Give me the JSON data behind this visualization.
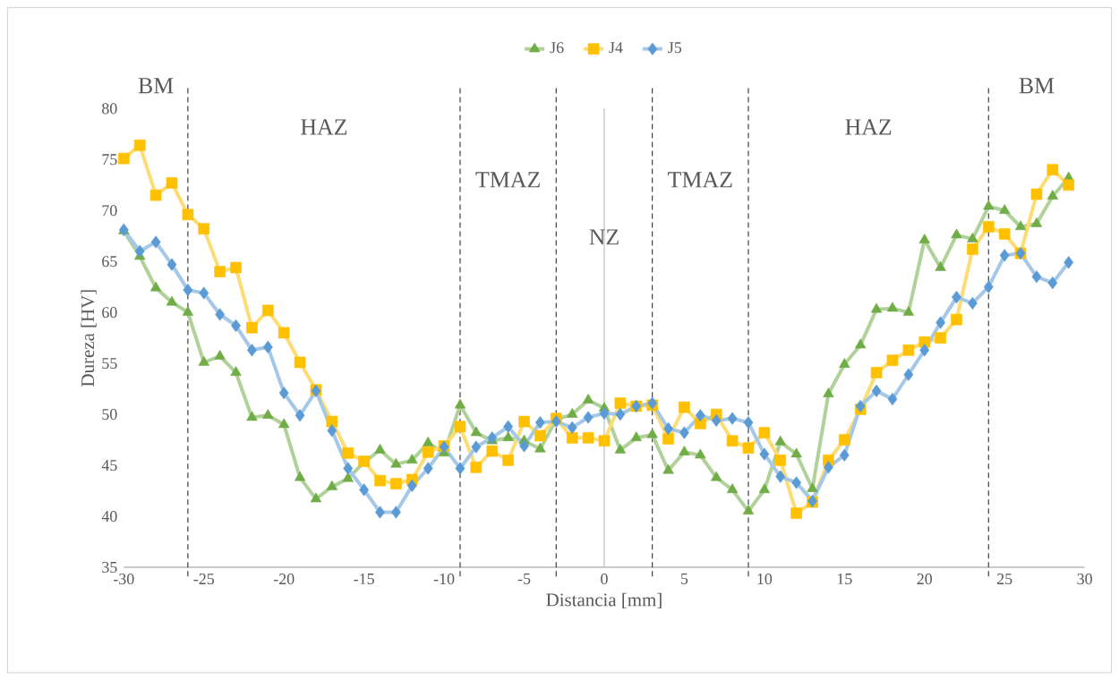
{
  "chart_data": {
    "type": "line",
    "xlabel": "Distancia [mm]",
    "ylabel": "Dureza [HV]",
    "x": [
      -30,
      -29,
      -28,
      -27,
      -26,
      -25,
      -24,
      -23,
      -22,
      -21,
      -20,
      -19,
      -18,
      -17,
      -16,
      -15,
      -14,
      -13,
      -12,
      -11,
      -10,
      -9,
      -8,
      -7,
      -6,
      -5,
      -4,
      -3,
      -2,
      -1,
      0,
      1,
      2,
      3,
      4,
      5,
      6,
      7,
      8,
      9,
      10,
      11,
      12,
      13,
      14,
      15,
      16,
      17,
      18,
      19,
      20,
      21,
      22,
      23,
      24,
      25,
      26,
      27,
      28,
      29
    ],
    "series": [
      {
        "name": "J6",
        "color": "#70ad47",
        "marker": "triangle",
        "values": [
          68.0,
          65.5,
          62.4,
          61.0,
          60.0,
          55.1,
          55.7,
          54.1,
          49.7,
          49.9,
          49.0,
          43.8,
          41.7,
          42.9,
          43.7,
          45.3,
          46.5,
          45.1,
          45.5,
          47.2,
          46.2,
          50.9,
          48.2,
          47.4,
          47.7,
          47.4,
          46.6,
          49.5,
          50.0,
          51.4,
          50.6,
          46.5,
          47.7,
          48.0,
          44.5,
          46.3,
          46.0,
          43.8,
          42.6,
          40.5,
          42.6,
          47.3,
          46.1,
          42.7,
          52.0,
          54.9,
          56.8,
          60.3,
          60.4,
          60.0,
          67.1,
          64.4,
          67.6,
          67.2,
          70.4,
          70.0,
          68.4,
          68.7,
          71.4,
          73.2
        ]
      },
      {
        "name": "J4",
        "color": "#ffc000",
        "marker": "square",
        "values": [
          75.1,
          76.4,
          71.5,
          72.7,
          69.6,
          68.2,
          64.0,
          64.4,
          58.5,
          60.2,
          58.0,
          55.1,
          52.4,
          49.3,
          46.2,
          45.4,
          43.5,
          43.2,
          43.6,
          46.3,
          46.9,
          48.8,
          44.8,
          46.4,
          45.5,
          49.3,
          47.9,
          49.6,
          47.7,
          47.7,
          47.4,
          51.1,
          50.8,
          50.9,
          47.6,
          50.7,
          49.1,
          50.0,
          47.4,
          46.7,
          48.2,
          45.5,
          40.3,
          41.4,
          45.5,
          47.5,
          50.5,
          54.1,
          55.3,
          56.3,
          57.1,
          57.5,
          59.3,
          66.2,
          68.4,
          67.7,
          65.8,
          71.6,
          74.0,
          72.5
        ]
      },
      {
        "name": "J5",
        "color": "#5b9bd5",
        "marker": "diamond",
        "values": [
          68.1,
          66.0,
          66.9,
          64.7,
          62.2,
          61.9,
          59.8,
          58.7,
          56.3,
          56.6,
          52.1,
          49.9,
          52.3,
          48.4,
          44.7,
          42.6,
          40.4,
          40.4,
          43.0,
          44.7,
          46.8,
          44.7,
          46.8,
          47.7,
          48.8,
          46.9,
          49.2,
          49.3,
          48.7,
          49.7,
          50.1,
          50.0,
          50.8,
          51.1,
          48.6,
          48.2,
          49.9,
          49.4,
          49.6,
          49.2,
          46.1,
          43.9,
          43.3,
          41.5,
          44.8,
          46.0,
          50.8,
          52.3,
          51.5,
          53.9,
          56.3,
          59.0,
          61.5,
          60.9,
          62.5,
          65.6,
          65.8,
          63.5,
          62.9,
          64.9
        ]
      }
    ],
    "xlim": [
      -30,
      30
    ],
    "ylim": [
      35,
      80
    ],
    "xticks": [
      -30,
      -25,
      -20,
      -15,
      -10,
      -5,
      0,
      5,
      10,
      15,
      20,
      25,
      30
    ],
    "yticks": [
      35,
      40,
      45,
      50,
      55,
      60,
      65,
      70,
      75,
      80
    ],
    "line_style": "solid",
    "legend": "top",
    "grid": false,
    "ref_lines": [
      {
        "axis": "x",
        "value": -26,
        "color": "#404040",
        "line_style": "dashed"
      },
      {
        "axis": "x",
        "value": -9,
        "color": "#404040",
        "line_style": "dashed"
      },
      {
        "axis": "x",
        "value": -3,
        "color": "#404040",
        "line_style": "dashed"
      },
      {
        "axis": "x",
        "value": 0,
        "color": "#bfbfbf",
        "line_style": "solid"
      },
      {
        "axis": "x",
        "value": 3,
        "color": "#404040",
        "line_style": "dashed"
      },
      {
        "axis": "x",
        "value": 9,
        "color": "#404040",
        "line_style": "dashed"
      },
      {
        "axis": "x",
        "value": 24,
        "color": "#404040",
        "line_style": "dashed"
      }
    ],
    "annotations": [
      "BM",
      "HAZ",
      "TMAZ",
      "NZ",
      "TMAZ",
      "HAZ",
      "BM"
    ]
  }
}
